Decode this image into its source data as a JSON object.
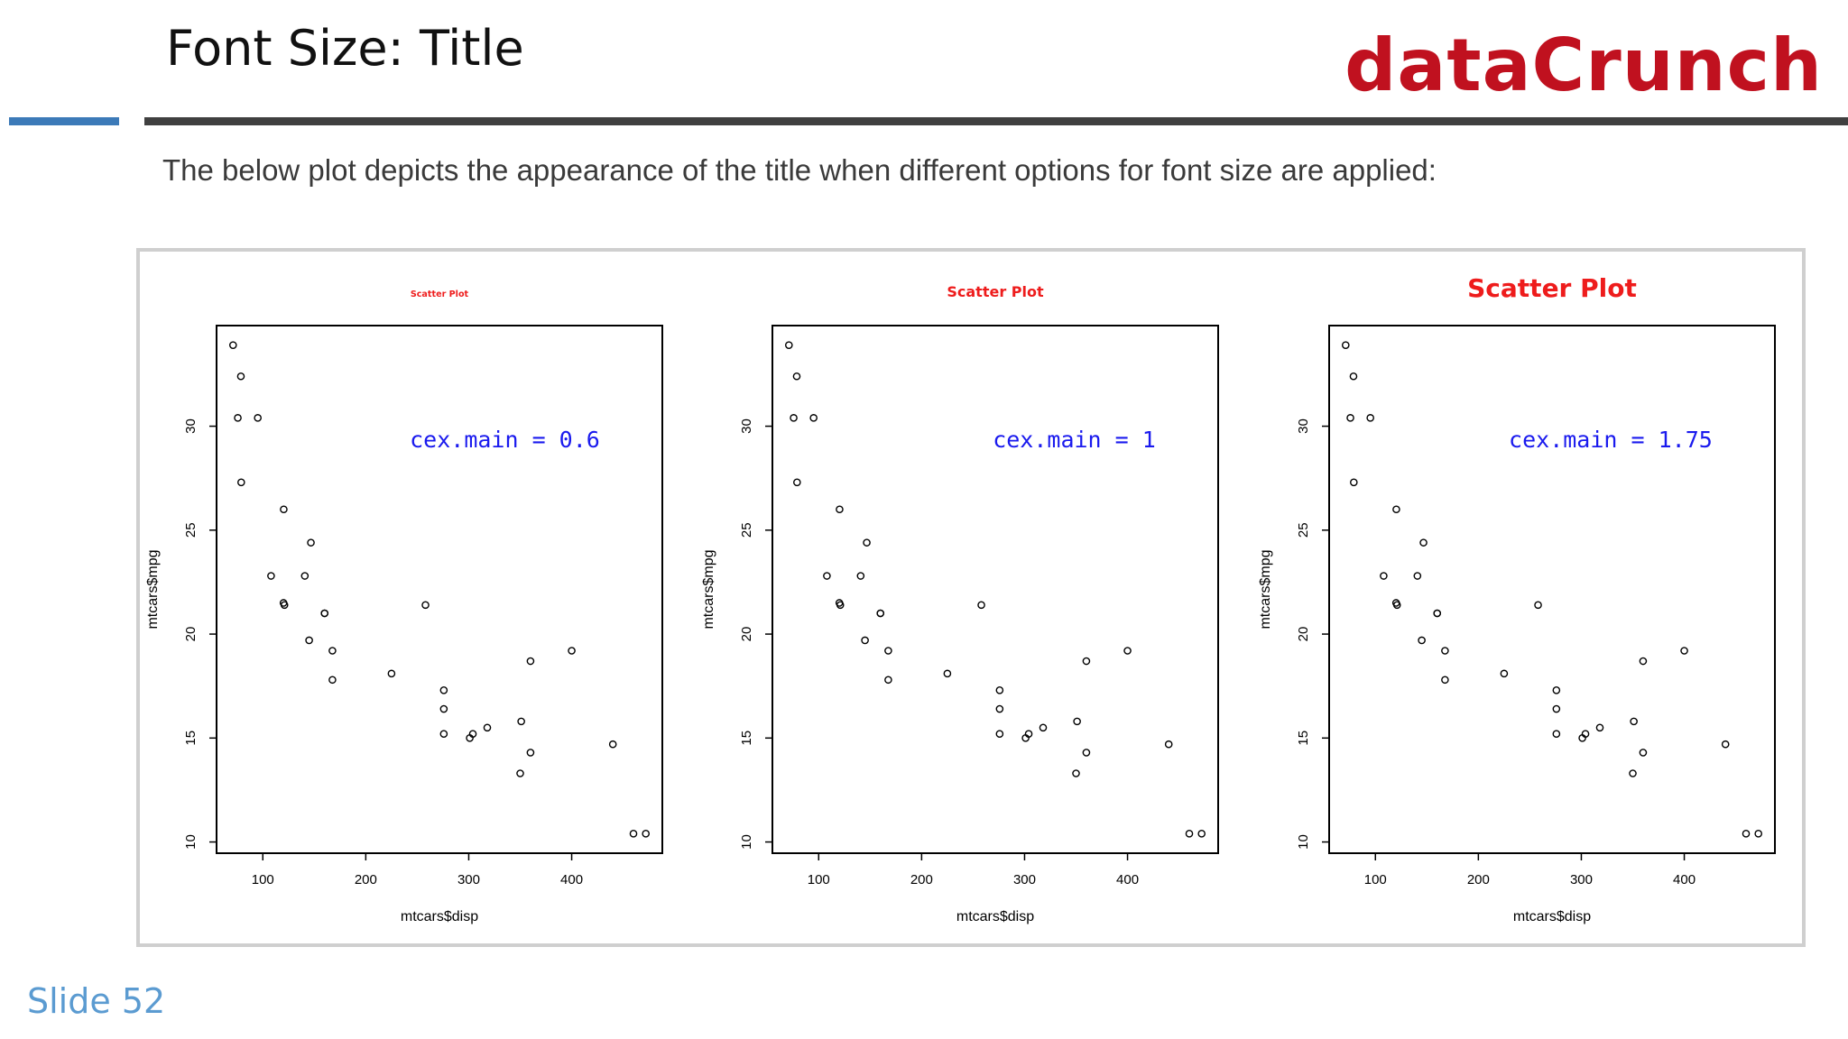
{
  "slide": {
    "title": "Font Size: Title",
    "brand": "dataCrunch",
    "intro": "The below plot depicts the appearance of the title when different options for font size are applied:",
    "slide_number": "Slide 52"
  },
  "colors": {
    "brand": "#c0111f",
    "accent_rule": "#3c7ab8",
    "plot_title": "#ee1c1c",
    "annotation": "#1a1aee",
    "slide_number": "#5b9bd1"
  },
  "chart_data": [
    {
      "type": "scatter",
      "title": "Scatter Plot",
      "annotation": "cex.main =  0.6",
      "cex_main": 0.6,
      "xlabel": "mtcars$disp",
      "ylabel": "mtcars$mpg",
      "xticks": [
        100,
        200,
        300,
        400
      ],
      "yticks": [
        10,
        15,
        20,
        25,
        30
      ],
      "xlim": [
        71.1,
        472
      ],
      "ylim": [
        10.4,
        33.9
      ],
      "x": [
        160,
        160,
        108,
        258,
        360,
        225,
        360,
        146.7,
        140.8,
        167.6,
        167.6,
        275.8,
        275.8,
        275.8,
        472,
        460,
        440,
        78.7,
        75.7,
        71.1,
        120.1,
        318,
        304,
        350,
        400,
        79,
        120.3,
        95.1,
        351,
        145,
        301,
        121
      ],
      "y": [
        21.0,
        21.0,
        22.8,
        21.4,
        18.7,
        18.1,
        14.3,
        24.4,
        22.8,
        19.2,
        17.8,
        16.4,
        17.3,
        15.2,
        10.4,
        10.4,
        14.7,
        32.4,
        30.4,
        33.9,
        21.5,
        15.5,
        15.2,
        13.3,
        19.2,
        27.3,
        26.0,
        30.4,
        15.8,
        19.7,
        15.0,
        21.4
      ]
    },
    {
      "type": "scatter",
      "title": "Scatter Plot",
      "annotation": "cex.main =  1",
      "cex_main": 1,
      "xlabel": "mtcars$disp",
      "ylabel": "mtcars$mpg",
      "xticks": [
        100,
        200,
        300,
        400
      ],
      "yticks": [
        10,
        15,
        20,
        25,
        30
      ],
      "xlim": [
        71.1,
        472
      ],
      "ylim": [
        10.4,
        33.9
      ],
      "x": [
        160,
        160,
        108,
        258,
        360,
        225,
        360,
        146.7,
        140.8,
        167.6,
        167.6,
        275.8,
        275.8,
        275.8,
        472,
        460,
        440,
        78.7,
        75.7,
        71.1,
        120.1,
        318,
        304,
        350,
        400,
        79,
        120.3,
        95.1,
        351,
        145,
        301,
        121
      ],
      "y": [
        21.0,
        21.0,
        22.8,
        21.4,
        18.7,
        18.1,
        14.3,
        24.4,
        22.8,
        19.2,
        17.8,
        16.4,
        17.3,
        15.2,
        10.4,
        10.4,
        14.7,
        32.4,
        30.4,
        33.9,
        21.5,
        15.5,
        15.2,
        13.3,
        19.2,
        27.3,
        26.0,
        30.4,
        15.8,
        19.7,
        15.0,
        21.4
      ]
    },
    {
      "type": "scatter",
      "title": "Scatter Plot",
      "annotation": "cex.main =  1.75",
      "cex_main": 1.75,
      "xlabel": "mtcars$disp",
      "ylabel": "mtcars$mpg",
      "xticks": [
        100,
        200,
        300,
        400
      ],
      "yticks": [
        10,
        15,
        20,
        25,
        30
      ],
      "xlim": [
        71.1,
        472
      ],
      "ylim": [
        10.4,
        33.9
      ],
      "x": [
        160,
        160,
        108,
        258,
        360,
        225,
        360,
        146.7,
        140.8,
        167.6,
        167.6,
        275.8,
        275.8,
        275.8,
        472,
        460,
        440,
        78.7,
        75.7,
        71.1,
        120.1,
        318,
        304,
        350,
        400,
        79,
        120.3,
        95.1,
        351,
        145,
        301,
        121
      ],
      "y": [
        21.0,
        21.0,
        22.8,
        21.4,
        18.7,
        18.1,
        14.3,
        24.4,
        22.8,
        19.2,
        17.8,
        16.4,
        17.3,
        15.2,
        10.4,
        10.4,
        14.7,
        32.4,
        30.4,
        33.9,
        21.5,
        15.5,
        15.2,
        13.3,
        19.2,
        27.3,
        26.0,
        30.4,
        15.8,
        19.7,
        15.0,
        21.4
      ]
    }
  ]
}
